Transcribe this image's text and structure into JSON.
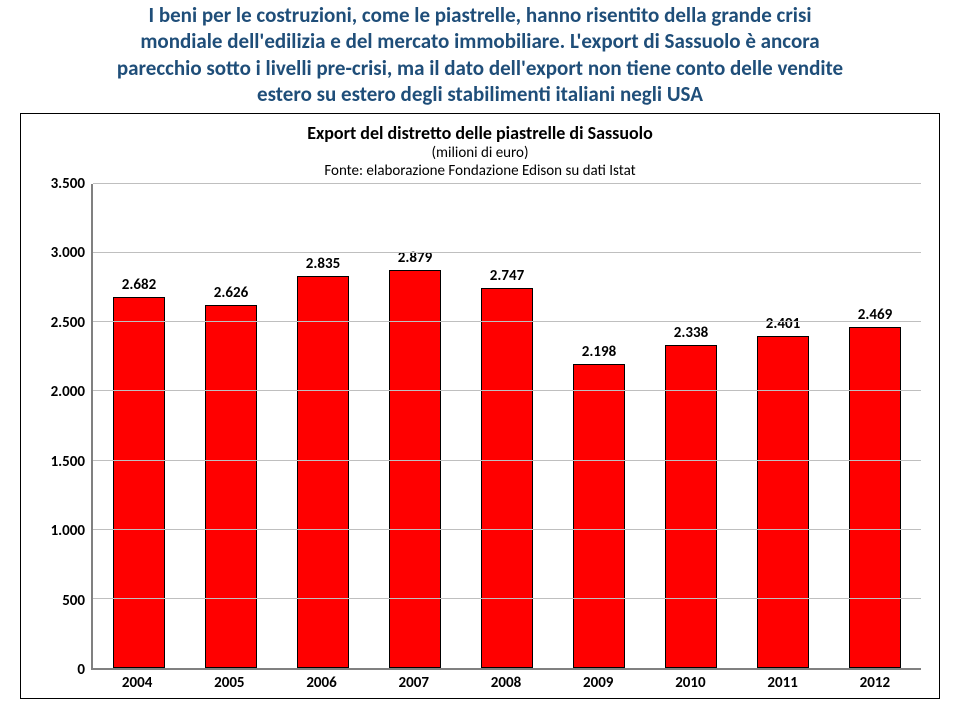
{
  "header": {
    "line1": "I beni per le costruzioni, come le piastrelle, hanno risentito della grande crisi",
    "line2": "mondiale dell'edilizia e del mercato immobiliare. L'export di Sassuolo è ancora",
    "line3": "parecchio sotto i livelli pre-crisi, ma il dato dell'export non tiene conto delle vendite",
    "line4": "estero su estero degli stabilimenti italiani negli USA",
    "color": "#1f4e79",
    "fontsize": 21
  },
  "chart": {
    "type": "bar",
    "title": "Export del distretto delle piastrelle di Sassuolo",
    "subtitle1": "(milioni di euro)",
    "subtitle2": "Fonte: elaborazione Fondazione Edison su dati Istat",
    "title_fontsize": 18,
    "subtitle_fontsize": 15,
    "categories": [
      "2004",
      "2005",
      "2006",
      "2007",
      "2008",
      "2009",
      "2010",
      "2011",
      "2012"
    ],
    "values": [
      2682,
      2626,
      2835,
      2879,
      2747,
      2198,
      2338,
      2401,
      2469
    ],
    "value_labels": [
      "2.682",
      "2.626",
      "2.835",
      "2.879",
      "2.747",
      "2.198",
      "2.338",
      "2.401",
      "2.469"
    ],
    "bar_color": "#ff0000",
    "bar_width_pct": 56,
    "ylim": [
      0,
      3500
    ],
    "ytick_step": 500,
    "ytick_labels": [
      "0",
      "500",
      "1.000",
      "1.500",
      "2.000",
      "2.500",
      "3.000",
      "3.500"
    ],
    "axis_label_fontsize": 15,
    "bar_label_fontsize": 15,
    "axis_label_color": "#000000",
    "background_color": "#ffffff",
    "grid_color": "#bfbfbf",
    "axis_color": "#808080"
  }
}
